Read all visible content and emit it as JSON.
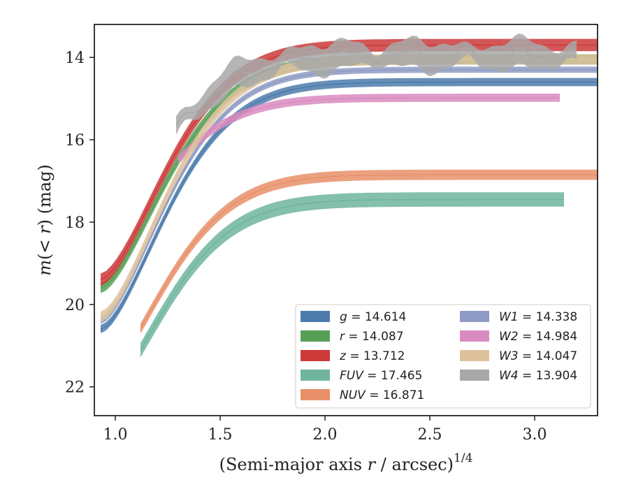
{
  "chart_data": {
    "type": "line",
    "title": "",
    "xlabel": "(Semi-major axis r / arcsec)^1/4",
    "xlabel_parts": {
      "prefix": "(Semi-major axis ",
      "var": "r",
      "suffix": " / arcsec)",
      "exponent": "1/4"
    },
    "ylabel": "m(< r) (mag)",
    "ylabel_parts": {
      "m": "m",
      "open": "(",
      "lt": "< ",
      "r": "r",
      "close": ")",
      "unit": " (mag)"
    },
    "xlim": [
      0.9,
      3.3
    ],
    "ylim": [
      22.7,
      13.2
    ],
    "y_inverted": true,
    "xticks": [
      1.0,
      1.5,
      2.0,
      2.5,
      3.0
    ],
    "xtick_labels": [
      "1.0",
      "1.5",
      "2.0",
      "2.5",
      "3.0"
    ],
    "yticks": [
      14,
      16,
      18,
      20,
      22
    ],
    "ytick_labels": [
      "14",
      "16",
      "18",
      "20",
      "22"
    ],
    "grid": false,
    "legend_position": "lower-right",
    "series": [
      {
        "name": "g",
        "label_value": "14.614",
        "color": "#4c7bab",
        "x0": 0.93,
        "x1": 3.3,
        "start_mag": 20.6,
        "asym": 14.6,
        "band_width": 0.2,
        "noise": 0
      },
      {
        "name": "r",
        "label_value": "14.087",
        "color": "#55a055",
        "x0": 0.93,
        "x1": 3.3,
        "start_mag": 19.6,
        "asym": 14.05,
        "band_width": 0.25,
        "noise": 0
      },
      {
        "name": "z",
        "label_value": "13.712",
        "color": "#cc3a3a",
        "x0": 0.93,
        "x1": 3.3,
        "start_mag": 19.4,
        "asym": 13.7,
        "band_width": 0.3,
        "noise": 0
      },
      {
        "name": "FUV",
        "label_value": "17.465",
        "color": "#6fb59e",
        "x0": 1.12,
        "x1": 3.14,
        "start_mag": 22.3,
        "asym": 17.45,
        "band_width": 0.35,
        "noise": 0
      },
      {
        "name": "NUV",
        "label_value": "16.871",
        "color": "#e8906a",
        "x0": 1.12,
        "x1": 3.3,
        "start_mag": 21.8,
        "asym": 16.85,
        "band_width": 0.25,
        "noise": 0
      },
      {
        "name": "W1",
        "label_value": "14.338",
        "color": "#8f9bc4",
        "x0": 0.93,
        "x1": 3.3,
        "start_mag": 20.4,
        "asym": 14.3,
        "band_width": 0.15,
        "noise": 0
      },
      {
        "name": "W2",
        "label_value": "14.984",
        "color": "#d98bc0",
        "x0": 1.3,
        "x1": 3.12,
        "start_mag": 18.4,
        "asym": 14.98,
        "band_width": 0.2,
        "noise": 0
      },
      {
        "name": "W3",
        "label_value": "14.047",
        "color": "#dec29e",
        "x0": 0.93,
        "x1": 3.3,
        "start_mag": 20.3,
        "asym": 14.05,
        "band_width": 0.25,
        "noise": 0
      },
      {
        "name": "W4",
        "label_value": "13.904",
        "color": "#a8a8a8",
        "x0": 1.29,
        "x1": 3.2,
        "start_mag": 17.9,
        "asym": 13.95,
        "band_width": 0.55,
        "noise": 1
      }
    ]
  }
}
